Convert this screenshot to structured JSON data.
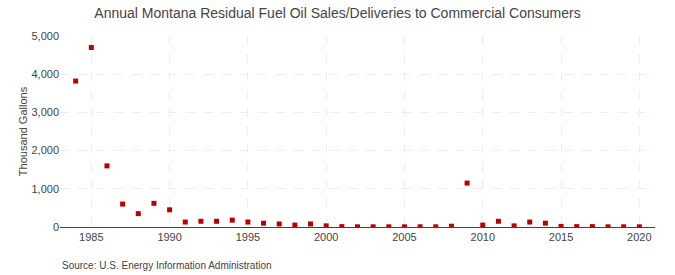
{
  "chart_data": {
    "type": "scatter",
    "title": "Annual Montana Residual Fuel Oil Sales/Deliveries to Commercial Consumers",
    "ylabel": "Thousand Gallons",
    "annotations": [
      "Source: U.S. Energy Information Administration"
    ],
    "x": [
      1984,
      1985,
      1986,
      1987,
      1988,
      1989,
      1990,
      1991,
      1992,
      1993,
      1994,
      1995,
      1996,
      1997,
      1998,
      1999,
      2000,
      2001,
      2002,
      2003,
      2004,
      2005,
      2006,
      2007,
      2008,
      2009,
      2010,
      2011,
      2012,
      2013,
      2014,
      2015,
      2016,
      2017,
      2018,
      2019,
      2020
    ],
    "values": [
      3820,
      4700,
      1600,
      600,
      350,
      620,
      450,
      130,
      150,
      150,
      180,
      130,
      100,
      80,
      50,
      80,
      30,
      10,
      5,
      5,
      5,
      5,
      5,
      5,
      20,
      1150,
      50,
      150,
      30,
      130,
      100,
      15,
      10,
      10,
      5,
      5,
      5
    ],
    "color": "#bb0000",
    "marker": "square",
    "xlim": [
      1983,
      2021
    ],
    "xticks": [
      1985,
      1990,
      1995,
      2000,
      2005,
      2010,
      2015,
      2020
    ],
    "ylim": [
      0,
      5000
    ],
    "yticks": [
      0,
      {
        "value": 1000,
        "label": "1,000"
      },
      {
        "value": 2000,
        "label": "2,000"
      },
      {
        "value": 3000,
        "label": "3,000"
      },
      {
        "value": 4000,
        "label": "4,000"
      },
      {
        "value": 5000,
        "label": "5,000"
      }
    ],
    "grid": true
  }
}
